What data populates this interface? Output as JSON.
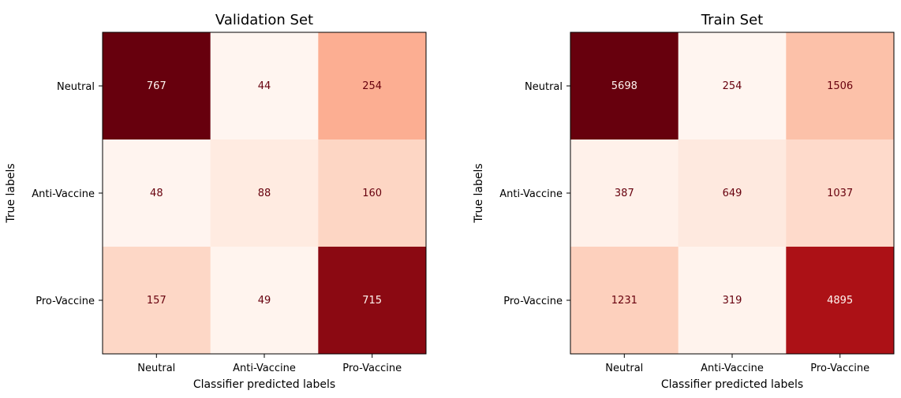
{
  "chart_data": [
    {
      "type": "heatmap",
      "title": "Validation Set",
      "xlabel": "Classifier predicted labels",
      "ylabel": "True labels",
      "x_categories": [
        "Neutral",
        "Anti-Vaccine",
        "Pro-Vaccine"
      ],
      "y_categories": [
        "Neutral",
        "Anti-Vaccine",
        "Pro-Vaccine"
      ],
      "colormap": "Reds",
      "colorbar": false,
      "grid": false,
      "values": [
        [
          767,
          44,
          254
        ],
        [
          48,
          88,
          160
        ],
        [
          157,
          49,
          715
        ]
      ]
    },
    {
      "type": "heatmap",
      "title": "Train Set",
      "xlabel": "Classifier predicted labels",
      "ylabel": "True labels",
      "x_categories": [
        "Neutral",
        "Anti-Vaccine",
        "Pro-Vaccine"
      ],
      "y_categories": [
        "Neutral",
        "Anti-Vaccine",
        "Pro-Vaccine"
      ],
      "colormap": "Reds",
      "colorbar": false,
      "grid": false,
      "values": [
        [
          5698,
          254,
          1506
        ],
        [
          387,
          649,
          1037
        ],
        [
          1231,
          319,
          4895
        ]
      ]
    }
  ]
}
